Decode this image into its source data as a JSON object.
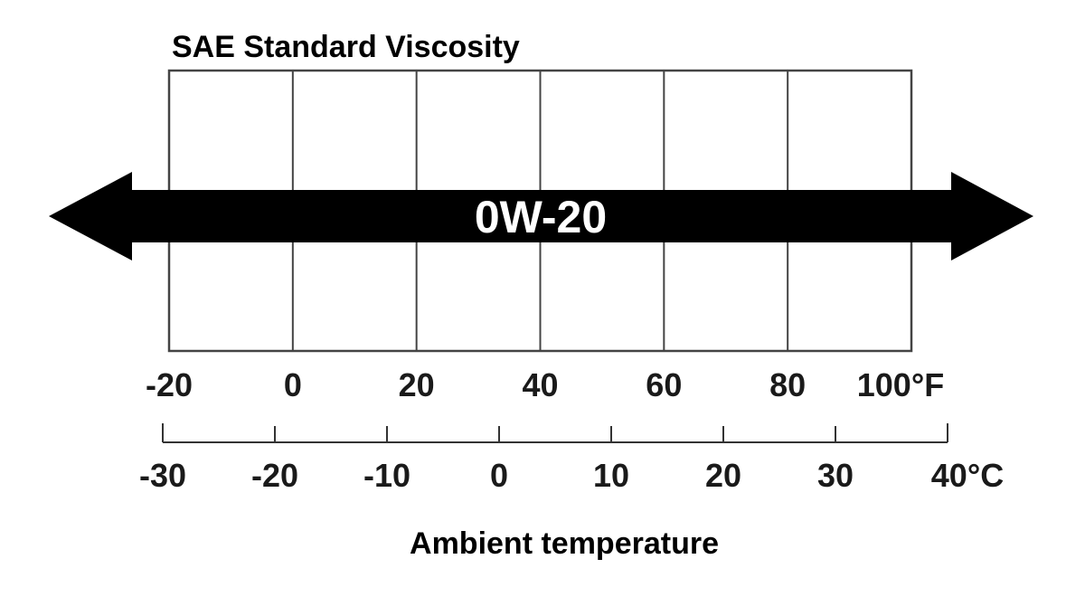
{
  "chart_data": {
    "type": "range-band",
    "title": "SAE Standard Viscosity",
    "xlabel": "Ambient temperature",
    "ylabel": "",
    "axis_f": {
      "ticks": [
        -20,
        0,
        20,
        40,
        60,
        80,
        100
      ],
      "tick_labels": [
        "-20",
        "0",
        "20",
        "40",
        "60",
        "80",
        "100°F"
      ],
      "range": [
        -20,
        100
      ],
      "unit": "°F"
    },
    "axis_c": {
      "ticks": [
        -30,
        -20,
        -10,
        0,
        10,
        20,
        30,
        40
      ],
      "tick_labels": [
        "-30",
        "-20",
        "-10",
        "0",
        "10",
        "20",
        "30",
        "40°C"
      ],
      "range": [
        -30,
        40
      ],
      "unit": "°C"
    },
    "series": [
      {
        "name": "0W-20",
        "from": "below -20°F",
        "to": "above 100°F",
        "color": "#000000"
      }
    ],
    "grid": true
  }
}
